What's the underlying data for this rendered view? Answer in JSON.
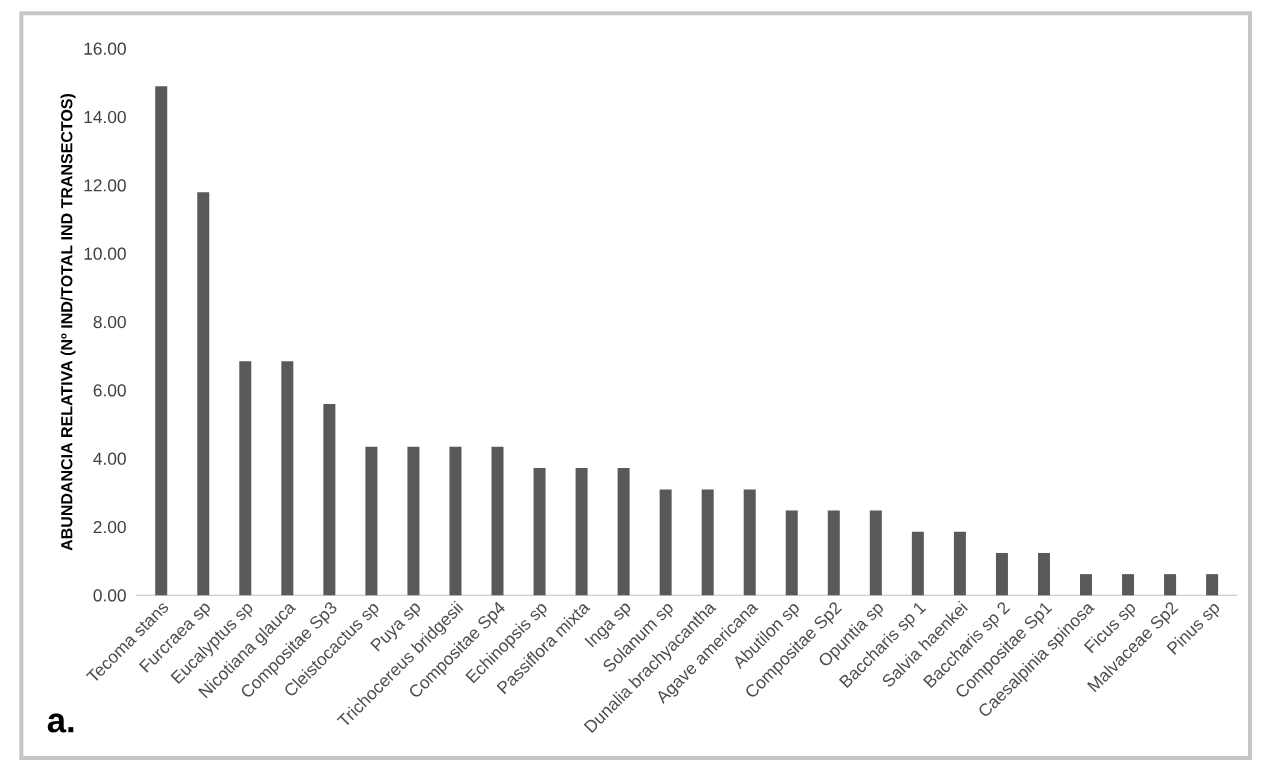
{
  "chart_data": {
    "type": "bar",
    "ylabel": "ABUNDANCIA RELATIVA (Nº IND/TOTAL IND TRANSECTOS)",
    "categories": [
      "Tecoma stans",
      "Furcraea sp",
      "Eucalyptus sp",
      "Nicotiana glauca",
      "Compositae Sp3",
      "Cleistocactus sp",
      "Puya sp",
      "Trichocereus bridgesii",
      "Compositae Sp4",
      "Echinopsis sp",
      "Passiflora mixta",
      "Inga sp",
      "Solanum sp",
      "Dunalia brachyacantha",
      "Agave americana",
      "Abutilon sp",
      "Compositae Sp2",
      "Opuntia sp",
      "Baccharis sp 1",
      "Salvia haenkei",
      "Baccharis sp 2",
      "Compositae Sp1",
      "Caesalpinia spinosa",
      "Ficus sp",
      "Malvaceae Sp2",
      "Pinus sp"
    ],
    "values": [
      14.9,
      11.8,
      6.85,
      6.85,
      5.6,
      4.35,
      4.35,
      4.35,
      4.35,
      3.73,
      3.73,
      3.73,
      3.1,
      3.1,
      3.1,
      2.48,
      2.48,
      2.48,
      1.86,
      1.86,
      1.24,
      1.24,
      0.62,
      0.62,
      0.62,
      0.62
    ],
    "color": "#595959",
    "ylim": [
      0,
      16
    ],
    "yticks": [
      {
        "value": 0,
        "label": "0.00"
      },
      {
        "value": 2,
        "label": "2.00"
      },
      {
        "value": 4,
        "label": "4.00"
      },
      {
        "value": 6,
        "label": "6.00"
      },
      {
        "value": 8,
        "label": "8.00"
      },
      {
        "value": 10,
        "label": "10.00"
      },
      {
        "value": 12,
        "label": "12.00"
      },
      {
        "value": 14,
        "label": "14.00"
      },
      {
        "value": 16,
        "label": "16.00"
      }
    ],
    "grid": false,
    "annotations": [
      "a."
    ]
  }
}
